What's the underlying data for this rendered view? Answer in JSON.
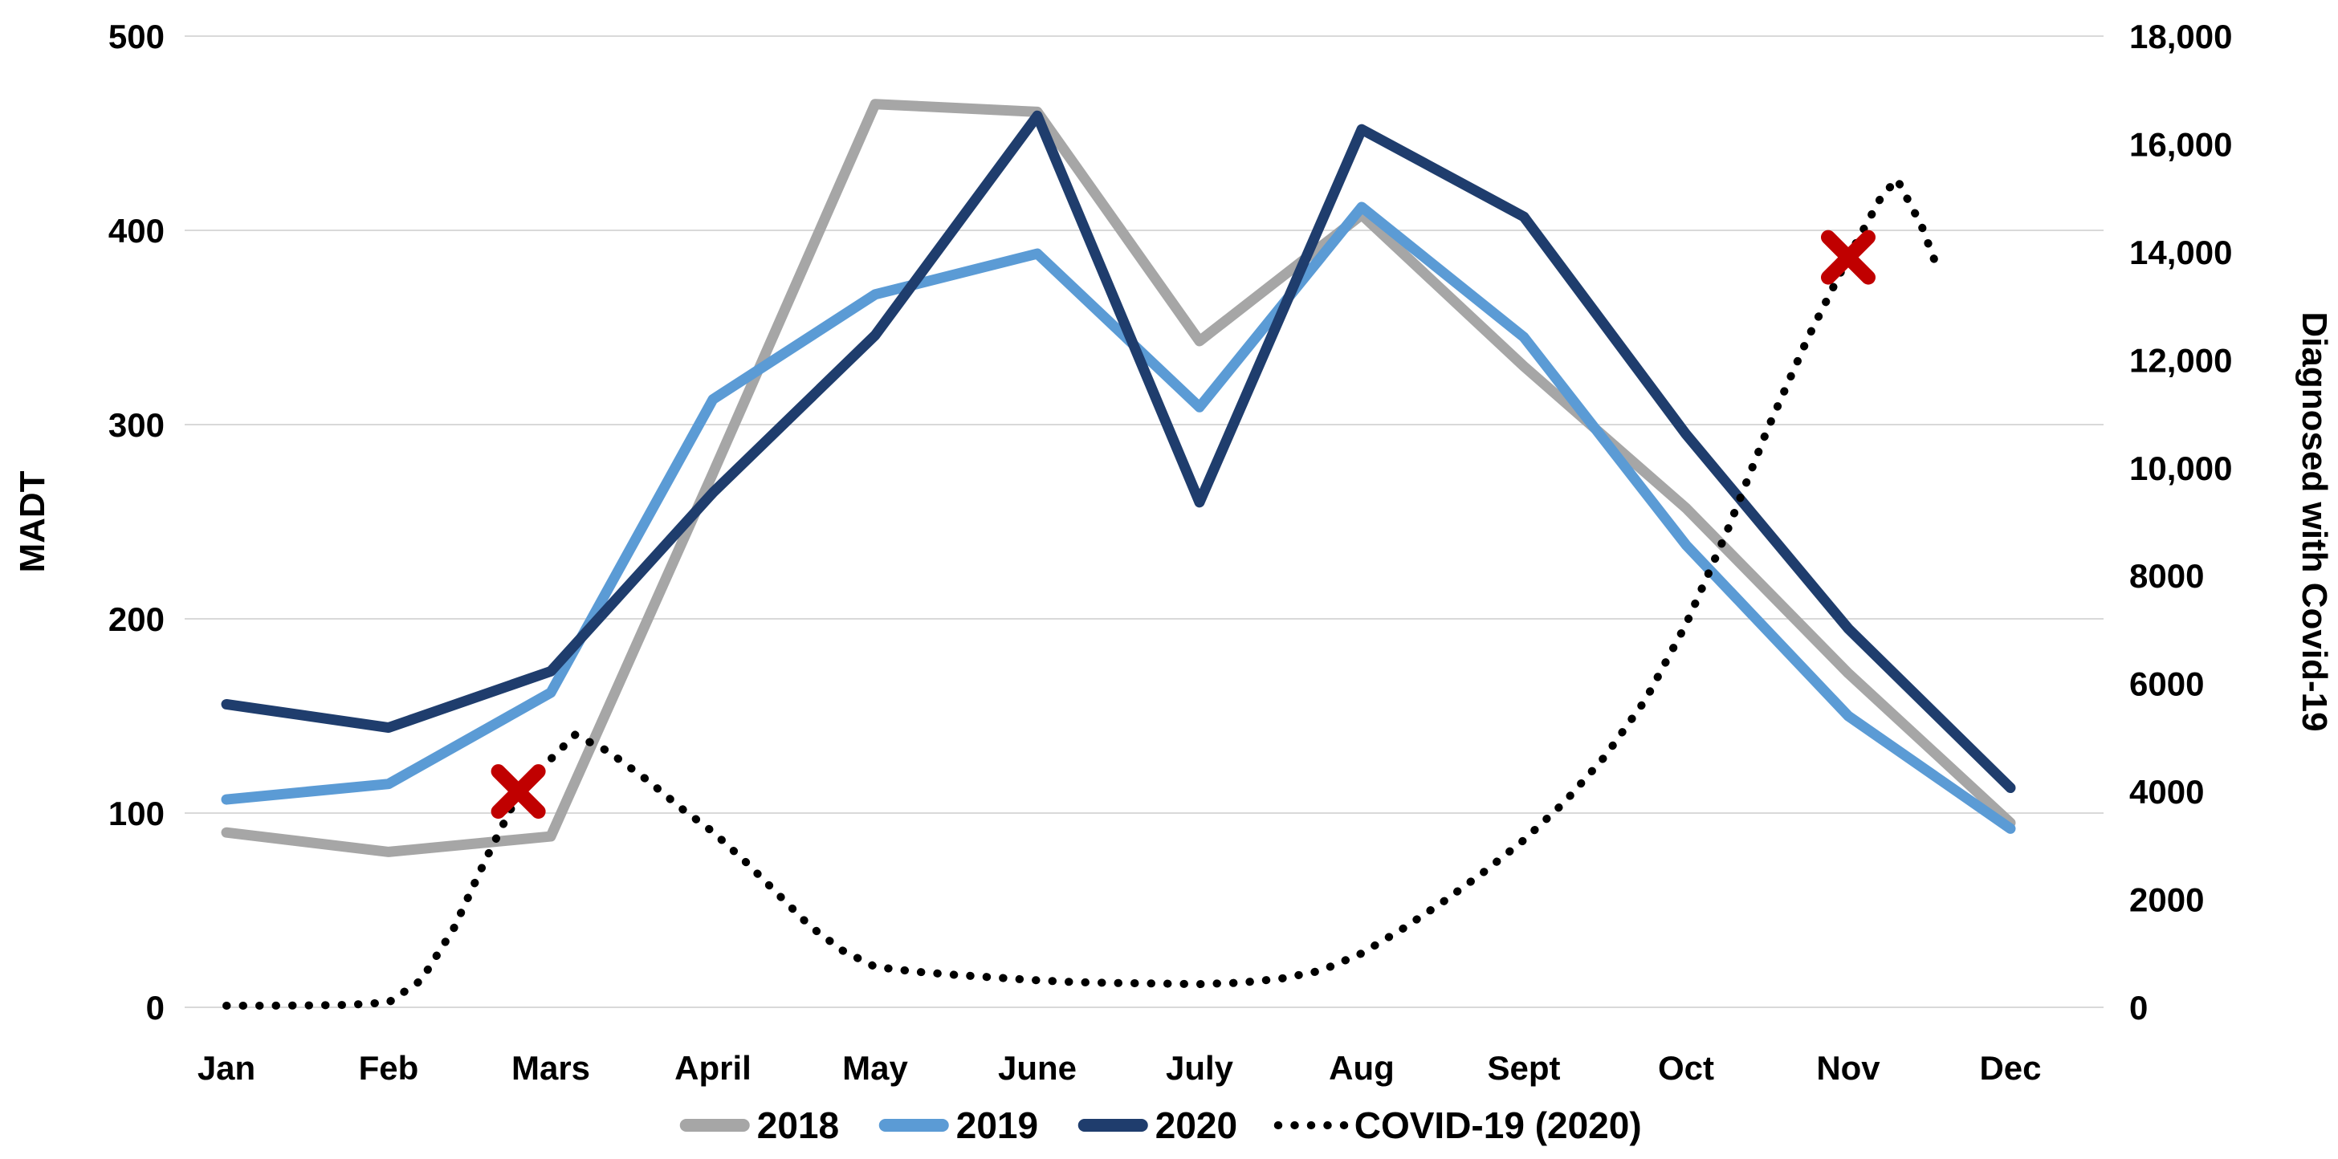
{
  "chart_data": {
    "type": "line",
    "title": "",
    "categories": [
      "Jan",
      "Feb",
      "Mars",
      "April",
      "May",
      "June",
      "July",
      "Aug",
      "Sept",
      "Oct",
      "Nov",
      "Dec"
    ],
    "left_axis": {
      "label": "MADT",
      "min": 0,
      "max": 500,
      "tick_step": 100,
      "ticks": [
        "0",
        "100",
        "200",
        "300",
        "400",
        "500"
      ]
    },
    "right_axis": {
      "label": "Diagnosed with Covid-19",
      "min": 0,
      "max": 18000,
      "tick_step": 2000,
      "ticks": [
        "0",
        "2000",
        "4000",
        "6000",
        "8000",
        "10,000",
        "12,000",
        "14,000",
        "16,000",
        "18,000"
      ]
    },
    "grid": true,
    "legend_position": "bottom",
    "series": [
      {
        "name": "2018",
        "axis": "left",
        "color": "#A6A6A6",
        "style": "solid",
        "values": [
          90,
          80,
          88,
          275,
          465,
          461,
          343,
          408,
          330,
          257,
          172,
          95
        ]
      },
      {
        "name": "2019",
        "axis": "left",
        "color": "#5B9BD5",
        "style": "solid",
        "values": [
          107,
          115,
          162,
          313,
          367,
          388,
          309,
          412,
          345,
          238,
          150,
          92
        ]
      },
      {
        "name": "2020",
        "axis": "left",
        "color": "#1F3D6D",
        "style": "solid",
        "values": [
          156,
          144,
          173,
          265,
          346,
          459,
          260,
          452,
          407,
          295,
          195,
          113
        ]
      }
    ],
    "covid_series": {
      "name": "COVID-19 (2020)",
      "axis": "right",
      "color": "#000000",
      "style": "dotted",
      "points": [
        [
          0,
          30
        ],
        [
          0.25,
          30
        ],
        [
          0.5,
          35
        ],
        [
          0.75,
          45
        ],
        [
          1,
          90
        ],
        [
          1.2,
          500
        ],
        [
          1.4,
          1450
        ],
        [
          1.6,
          2750
        ],
        [
          1.8,
          3950
        ],
        [
          2,
          4600
        ],
        [
          2.15,
          5050
        ],
        [
          2.35,
          4750
        ],
        [
          2.6,
          4200
        ],
        [
          2.8,
          3700
        ],
        [
          3,
          3250
        ],
        [
          3.2,
          2700
        ],
        [
          3.4,
          2100
        ],
        [
          3.6,
          1500
        ],
        [
          3.8,
          1050
        ],
        [
          4,
          750
        ],
        [
          4.25,
          660
        ],
        [
          4.5,
          600
        ],
        [
          4.75,
          550
        ],
        [
          5,
          500
        ],
        [
          5.25,
          465
        ],
        [
          5.5,
          450
        ],
        [
          5.75,
          440
        ],
        [
          6,
          430
        ],
        [
          6.25,
          455
        ],
        [
          6.5,
          530
        ],
        [
          6.75,
          680
        ],
        [
          7,
          1000
        ],
        [
          7.25,
          1450
        ],
        [
          7.5,
          1950
        ],
        [
          7.75,
          2500
        ],
        [
          8,
          3100
        ],
        [
          8.25,
          3800
        ],
        [
          8.5,
          4650
        ],
        [
          8.75,
          5700
        ],
        [
          9,
          7100
        ],
        [
          9.25,
          8800
        ],
        [
          9.5,
          10700
        ],
        [
          9.75,
          12400
        ],
        [
          10,
          13900
        ],
        [
          10.2,
          15000
        ],
        [
          10.3,
          15350
        ],
        [
          10.45,
          14500
        ],
        [
          10.55,
          13700
        ]
      ]
    },
    "event_markers": [
      {
        "name": "x-marker-mars",
        "month_x": 1.8,
        "value": 4000,
        "color": "#C00000",
        "shape": "x"
      },
      {
        "name": "x-marker-nov",
        "month_x": 10.0,
        "value": 13900,
        "color": "#C00000",
        "shape": "x"
      }
    ],
    "colors": {
      "gridline": "#D9D9D9",
      "text": "#000000",
      "background": "#FFFFFF",
      "marker_red": "#C00000"
    }
  }
}
